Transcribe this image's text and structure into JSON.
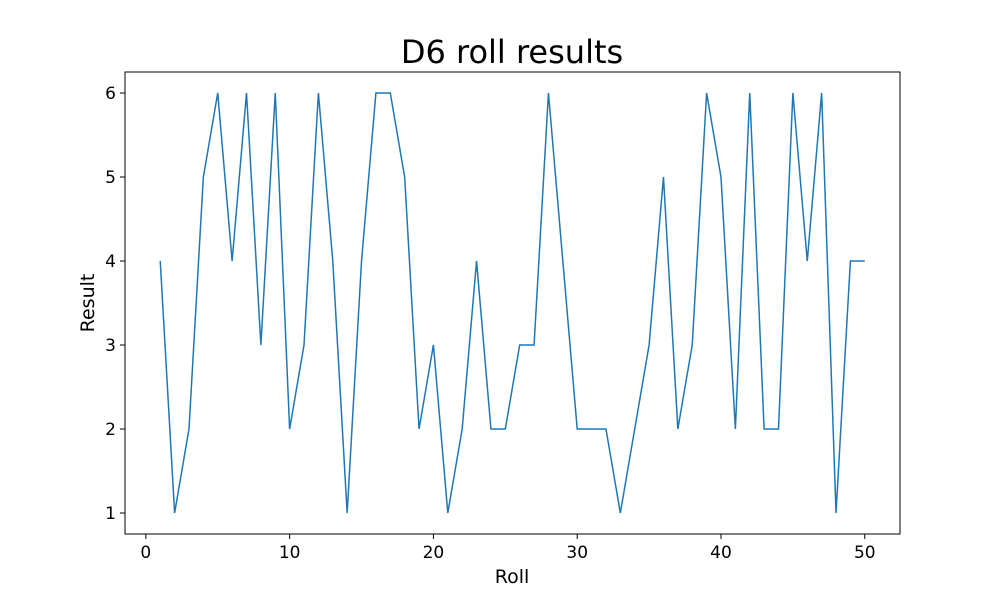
{
  "chart_data": {
    "type": "line",
    "title": "D6 roll results",
    "xlabel": "Roll",
    "ylabel": "Result",
    "xlim": [
      -1.45,
      52.45
    ],
    "ylim": [
      0.75,
      6.25
    ],
    "xticks": [
      0,
      10,
      20,
      30,
      40,
      50
    ],
    "yticks": [
      1,
      2,
      3,
      4,
      5,
      6
    ],
    "grid": false,
    "legend": "none",
    "line_color": "#1f77b4",
    "series": [
      {
        "x": [
          1,
          2,
          3,
          4,
          5,
          6,
          7,
          8,
          9,
          10,
          11,
          12,
          13,
          14,
          15,
          16,
          17,
          18,
          19,
          20,
          21,
          22,
          23,
          24,
          25,
          26,
          27,
          28,
          29,
          30,
          31,
          32,
          33,
          34,
          35,
          36,
          37,
          38,
          39,
          40,
          41,
          42,
          43,
          44,
          45,
          46,
          47,
          48,
          49,
          50
        ],
        "values": [
          4,
          1,
          2,
          5,
          6,
          4,
          6,
          3,
          6,
          2,
          3,
          6,
          4,
          1,
          4,
          6,
          6,
          5,
          2,
          3,
          1,
          2,
          4,
          2,
          2,
          3,
          3,
          6,
          4,
          2,
          2,
          2,
          1,
          2,
          3,
          5,
          2,
          3,
          6,
          5,
          2,
          6,
          2,
          2,
          6,
          4,
          6,
          1,
          4,
          4
        ]
      }
    ]
  }
}
